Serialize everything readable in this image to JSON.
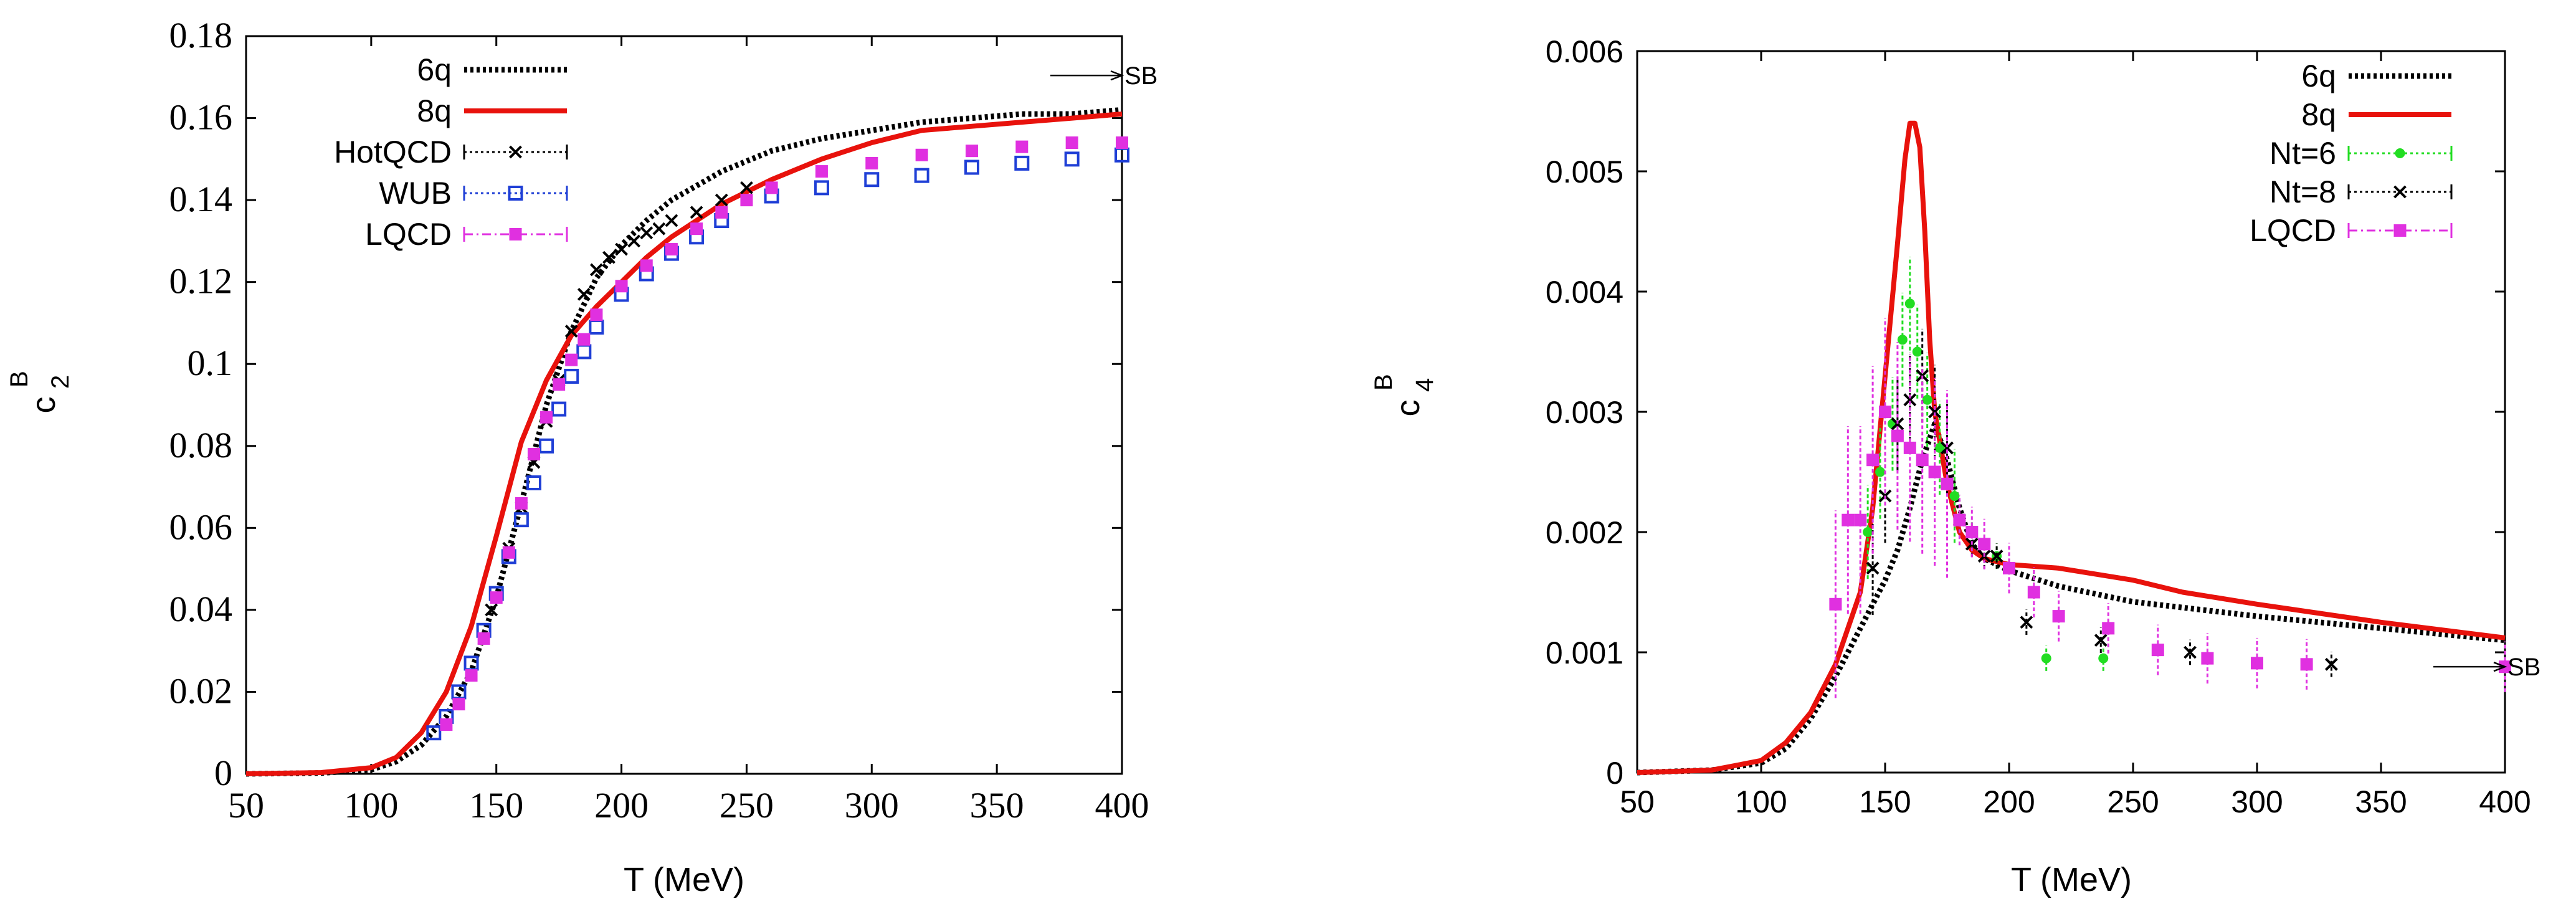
{
  "chart_data": [
    {
      "type": "line",
      "xlabel": "T (MeV)",
      "ylabel": "c",
      "ylabel_super": "B",
      "ylabel_sub": "2",
      "xlim": [
        50,
        400
      ],
      "ylim": [
        0,
        0.18
      ],
      "xticks": [
        "50",
        "100",
        "150",
        "200",
        "250",
        "300",
        "350",
        "400"
      ],
      "yticks": [
        "0",
        "0.02",
        "0.04",
        "0.06",
        "0.08",
        "0.1",
        "0.12",
        "0.14",
        "0.16",
        "0.18"
      ],
      "sb_label": "SB",
      "sb_value": 0.1704,
      "legend_position": "top-left",
      "series": [
        {
          "name": "6q",
          "style": "dotted",
          "color": "#000000",
          "x": [
            50,
            80,
            100,
            110,
            120,
            130,
            140,
            150,
            160,
            170,
            180,
            190,
            200,
            210,
            220,
            240,
            260,
            280,
            300,
            320,
            340,
            360,
            380,
            400
          ],
          "y": [
            0,
            0.0002,
            0.001,
            0.003,
            0.007,
            0.014,
            0.025,
            0.043,
            0.066,
            0.09,
            0.108,
            0.121,
            0.129,
            0.135,
            0.14,
            0.147,
            0.152,
            0.155,
            0.157,
            0.159,
            0.16,
            0.161,
            0.161,
            0.162
          ]
        },
        {
          "name": "8q",
          "style": "solid",
          "color": "#e8120c",
          "x": [
            50,
            80,
            100,
            110,
            120,
            130,
            140,
            150,
            160,
            170,
            180,
            190,
            200,
            210,
            220,
            240,
            260,
            280,
            300,
            320,
            340,
            360,
            380,
            400
          ],
          "y": [
            0,
            0.0003,
            0.0015,
            0.004,
            0.01,
            0.02,
            0.036,
            0.058,
            0.081,
            0.096,
            0.107,
            0.114,
            0.12,
            0.126,
            0.131,
            0.139,
            0.145,
            0.15,
            0.154,
            0.157,
            0.158,
            0.159,
            0.16,
            0.161
          ]
        },
        {
          "name": "HotQCD",
          "style": "dotted-x",
          "color": "#000000",
          "x": [
            148,
            155,
            160,
            165,
            170,
            175,
            180,
            185,
            190,
            195,
            200,
            205,
            210,
            215,
            220,
            230,
            240,
            250
          ],
          "y": [
            0.04,
            0.055,
            0.065,
            0.076,
            0.086,
            0.096,
            0.108,
            0.117,
            0.123,
            0.126,
            0.128,
            0.13,
            0.132,
            0.133,
            0.135,
            0.137,
            0.14,
            0.143
          ]
        },
        {
          "name": "WUB",
          "style": "dotted-box",
          "color": "#1f3fd6",
          "x": [
            125,
            130,
            135,
            140,
            145,
            150,
            155,
            160,
            165,
            170,
            175,
            180,
            185,
            190,
            200,
            210,
            220,
            230,
            240,
            260,
            280,
            300,
            320,
            340,
            360,
            380,
            400
          ],
          "y": [
            0.01,
            0.014,
            0.02,
            0.027,
            0.035,
            0.044,
            0.053,
            0.062,
            0.071,
            0.08,
            0.089,
            0.097,
            0.103,
            0.109,
            0.117,
            0.122,
            0.127,
            0.131,
            0.135,
            0.141,
            0.143,
            0.145,
            0.146,
            0.148,
            0.149,
            0.15,
            0.151
          ]
        },
        {
          "name": "LQCD",
          "style": "dashdot-box",
          "color": "#e030e0",
          "x": [
            130,
            135,
            140,
            145,
            150,
            155,
            160,
            165,
            170,
            175,
            180,
            185,
            190,
            200,
            210,
            220,
            230,
            240,
            250,
            260,
            280,
            300,
            320,
            340,
            360,
            380,
            400
          ],
          "y": [
            0.012,
            0.017,
            0.024,
            0.033,
            0.043,
            0.054,
            0.066,
            0.078,
            0.087,
            0.095,
            0.101,
            0.106,
            0.112,
            0.119,
            0.124,
            0.128,
            0.133,
            0.137,
            0.14,
            0.143,
            0.147,
            0.149,
            0.151,
            0.152,
            0.153,
            0.154,
            0.154
          ]
        }
      ]
    },
    {
      "type": "line",
      "xlabel": "T (MeV)",
      "ylabel": "c",
      "ylabel_super": "B",
      "ylabel_sub": "4",
      "xlim": [
        50,
        400
      ],
      "ylim": [
        0,
        0.006
      ],
      "xticks": [
        "50",
        "100",
        "150",
        "200",
        "250",
        "300",
        "350",
        "400"
      ],
      "yticks": [
        "0",
        "0.001",
        "0.002",
        "0.003",
        "0.004",
        "0.005",
        "0.006"
      ],
      "sb_label": "SB",
      "sb_value": 0.00088,
      "legend_position": "top-right",
      "series": [
        {
          "name": "6q",
          "style": "dotted",
          "color": "#000000",
          "x": [
            50,
            80,
            100,
            110,
            120,
            130,
            140,
            150,
            155,
            160,
            165,
            170,
            175,
            180,
            185,
            190,
            200,
            220,
            250,
            300,
            350,
            400
          ],
          "y": [
            0,
            2e-05,
            8e-05,
            0.0002,
            0.00045,
            0.0008,
            0.0012,
            0.0016,
            0.00185,
            0.0022,
            0.0026,
            0.0029,
            0.0026,
            0.0022,
            0.0019,
            0.00178,
            0.00168,
            0.00155,
            0.00142,
            0.0013,
            0.0012,
            0.0011
          ]
        },
        {
          "name": "8q",
          "style": "solid",
          "color": "#e8120c",
          "x": [
            50,
            80,
            100,
            110,
            120,
            130,
            140,
            145,
            150,
            155,
            158,
            160,
            162,
            164,
            166,
            168,
            170,
            175,
            180,
            185,
            190,
            200,
            220,
            250,
            270,
            300,
            350,
            400
          ],
          "y": [
            0,
            2e-05,
            0.0001,
            0.00025,
            0.0005,
            0.0009,
            0.0015,
            0.0022,
            0.0033,
            0.0044,
            0.0051,
            0.0054,
            0.0054,
            0.0052,
            0.0045,
            0.0036,
            0.003,
            0.0024,
            0.002,
            0.00185,
            0.00178,
            0.00173,
            0.0017,
            0.0016,
            0.0015,
            0.0014,
            0.00125,
            0.00112
          ]
        },
        {
          "name": "Nt=6",
          "style": "dotted-dot",
          "color": "#22dd22",
          "x": [
            143,
            148,
            153,
            157,
            160,
            163,
            167,
            172,
            178,
            185,
            195,
            215,
            238
          ],
          "y": [
            0.002,
            0.0025,
            0.0029,
            0.0036,
            0.0039,
            0.0035,
            0.0031,
            0.0027,
            0.0023,
            0.002,
            0.0018,
            0.00095,
            0.00095
          ]
        },
        {
          "name": "Nt=8",
          "style": "dotted-x",
          "color": "#000000",
          "x": [
            145,
            150,
            155,
            160,
            165,
            170,
            175,
            180,
            185,
            190,
            195,
            207,
            237,
            273,
            330
          ],
          "y": [
            0.0017,
            0.0023,
            0.0029,
            0.0031,
            0.0033,
            0.003,
            0.0027,
            0.0021,
            0.0019,
            0.0018,
            0.0018,
            0.00125,
            0.0011,
            0.001,
            0.0009
          ]
        },
        {
          "name": "LQCD",
          "style": "dashdot-box",
          "color": "#e030e0",
          "x": [
            130,
            135,
            140,
            145,
            150,
            155,
            160,
            165,
            170,
            175,
            180,
            185,
            190,
            200,
            210,
            220,
            240,
            260,
            280,
            300,
            320,
            400
          ],
          "y": [
            0.0014,
            0.0021,
            0.0021,
            0.0026,
            0.003,
            0.0028,
            0.0027,
            0.0026,
            0.0025,
            0.0024,
            0.0021,
            0.002,
            0.0019,
            0.0017,
            0.0015,
            0.0013,
            0.0012,
            0.00102,
            0.00095,
            0.00091,
            0.0009,
            0.00088
          ]
        }
      ]
    }
  ]
}
